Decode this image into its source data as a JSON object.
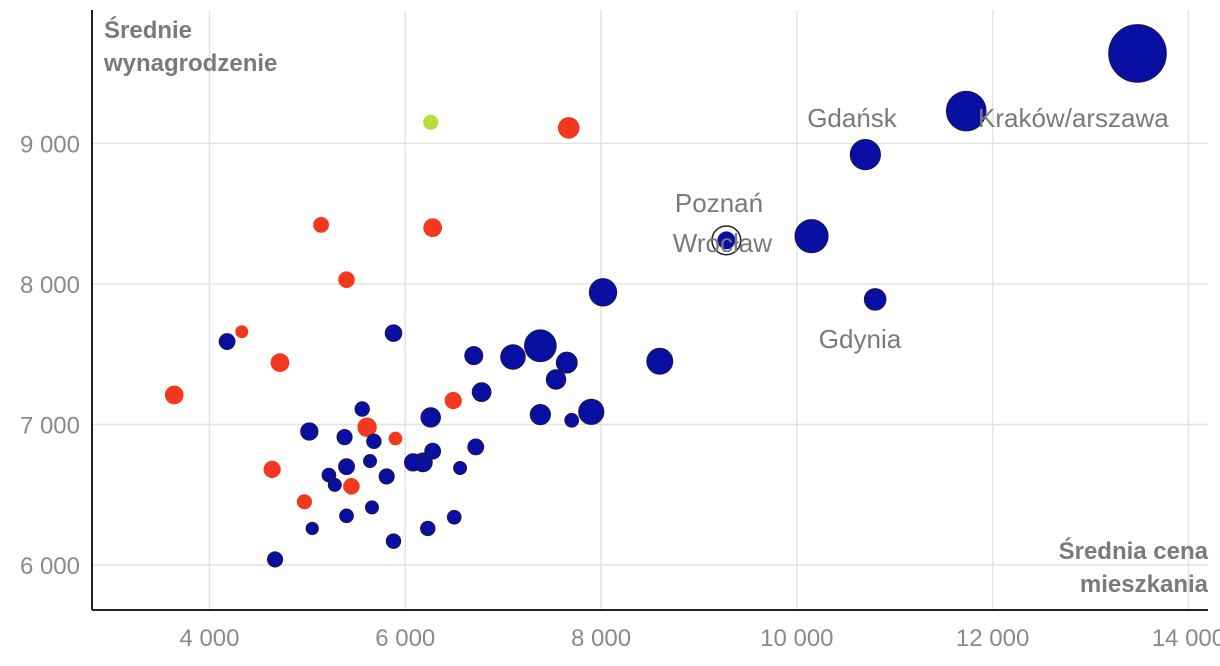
{
  "colors": {
    "city": "#0a0fa3",
    "red": "#f2381f",
    "green": "#b5de3c",
    "highlight_fill": "#ffffff"
  },
  "chart_data": {
    "type": "scatter",
    "title": "",
    "xlabel": [
      "Średnia cena",
      "mieszkania"
    ],
    "ylabel": [
      "Średnie",
      "wynagrodzenie"
    ],
    "xlim": [
      2800,
      14200
    ],
    "ylim": [
      5680,
      10020
    ],
    "xticks": [
      4000,
      6000,
      8000,
      10000,
      12000,
      14000
    ],
    "yticks": [
      6000,
      7000,
      8000,
      9000
    ],
    "xtick_labels": [
      "4 000",
      "6 000",
      "8 000",
      "10 000",
      "12 000",
      "14 000"
    ],
    "ytick_labels": [
      "6 000",
      "7 000",
      "8 000",
      "9 000"
    ],
    "grid": true,
    "points": [
      {
        "x": 13480,
        "y": 9640,
        "size": 8,
        "group": "city"
      },
      {
        "x": 11730,
        "y": 9230,
        "size": 5.5,
        "group": "city",
        "label": "Kraków",
        "overlap": "Warszawa"
      },
      {
        "x": 10700,
        "y": 8920,
        "size": 4.2,
        "group": "city",
        "label": "Gdańsk"
      },
      {
        "x": 10150,
        "y": 8340,
        "size": 4.6,
        "group": "city",
        "label": "Wrocław"
      },
      {
        "x": 9280,
        "y": 8310,
        "size": 4.0,
        "group": "highlight",
        "label": "Poznań"
      },
      {
        "x": 10800,
        "y": 7890,
        "size": 3.0,
        "group": "city",
        "label": "Gdynia"
      },
      {
        "x": 8020,
        "y": 7940,
        "size": 3.8,
        "group": "city"
      },
      {
        "x": 8600,
        "y": 7450,
        "size": 3.6,
        "group": "city"
      },
      {
        "x": 7380,
        "y": 7560,
        "size": 4.4,
        "group": "city"
      },
      {
        "x": 7100,
        "y": 7480,
        "size": 3.4,
        "group": "city"
      },
      {
        "x": 7650,
        "y": 7440,
        "size": 2.9,
        "group": "city"
      },
      {
        "x": 7540,
        "y": 7320,
        "size": 2.7,
        "group": "city"
      },
      {
        "x": 6700,
        "y": 7490,
        "size": 2.5,
        "group": "city"
      },
      {
        "x": 6780,
        "y": 7230,
        "size": 2.6,
        "group": "city"
      },
      {
        "x": 7900,
        "y": 7090,
        "size": 3.5,
        "group": "city"
      },
      {
        "x": 7380,
        "y": 7070,
        "size": 2.8,
        "group": "city"
      },
      {
        "x": 7700,
        "y": 7030,
        "size": 1.9,
        "group": "city"
      },
      {
        "x": 6260,
        "y": 7050,
        "size": 2.7,
        "group": "city"
      },
      {
        "x": 5880,
        "y": 7650,
        "size": 2.3,
        "group": "city"
      },
      {
        "x": 4180,
        "y": 7590,
        "size": 2.2,
        "group": "city"
      },
      {
        "x": 5020,
        "y": 6950,
        "size": 2.4,
        "group": "city"
      },
      {
        "x": 5560,
        "y": 7110,
        "size": 2.0,
        "group": "city"
      },
      {
        "x": 5380,
        "y": 6910,
        "size": 2.1,
        "group": "city"
      },
      {
        "x": 5680,
        "y": 6880,
        "size": 2.0,
        "group": "city"
      },
      {
        "x": 5640,
        "y": 6740,
        "size": 1.8,
        "group": "city"
      },
      {
        "x": 5400,
        "y": 6700,
        "size": 2.2,
        "group": "city"
      },
      {
        "x": 5220,
        "y": 6640,
        "size": 1.9,
        "group": "city"
      },
      {
        "x": 5280,
        "y": 6570,
        "size": 1.8,
        "group": "city"
      },
      {
        "x": 5810,
        "y": 6630,
        "size": 2.1,
        "group": "city"
      },
      {
        "x": 6080,
        "y": 6730,
        "size": 2.4,
        "group": "city"
      },
      {
        "x": 6180,
        "y": 6730,
        "size": 2.6,
        "group": "city"
      },
      {
        "x": 6280,
        "y": 6810,
        "size": 2.2,
        "group": "city"
      },
      {
        "x": 6720,
        "y": 6840,
        "size": 2.2,
        "group": "city"
      },
      {
        "x": 6560,
        "y": 6690,
        "size": 1.8,
        "group": "city"
      },
      {
        "x": 5660,
        "y": 6410,
        "size": 1.8,
        "group": "city"
      },
      {
        "x": 5400,
        "y": 6350,
        "size": 1.9,
        "group": "city"
      },
      {
        "x": 5050,
        "y": 6260,
        "size": 1.7,
        "group": "city"
      },
      {
        "x": 6500,
        "y": 6340,
        "size": 1.9,
        "group": "city"
      },
      {
        "x": 6230,
        "y": 6260,
        "size": 2.0,
        "group": "city"
      },
      {
        "x": 5880,
        "y": 6170,
        "size": 2.0,
        "group": "city"
      },
      {
        "x": 4670,
        "y": 6040,
        "size": 2.1,
        "group": "city"
      },
      {
        "x": 7670,
        "y": 9110,
        "size": 3.0,
        "group": "red"
      },
      {
        "x": 6280,
        "y": 8400,
        "size": 2.6,
        "group": "red"
      },
      {
        "x": 5140,
        "y": 8420,
        "size": 2.2,
        "group": "red"
      },
      {
        "x": 5400,
        "y": 8030,
        "size": 2.3,
        "group": "red"
      },
      {
        "x": 4330,
        "y": 7660,
        "size": 1.8,
        "group": "red"
      },
      {
        "x": 4720,
        "y": 7440,
        "size": 2.6,
        "group": "red"
      },
      {
        "x": 3640,
        "y": 7210,
        "size": 2.6,
        "group": "red"
      },
      {
        "x": 6490,
        "y": 7170,
        "size": 2.4,
        "group": "red"
      },
      {
        "x": 5610,
        "y": 6980,
        "size": 2.7,
        "group": "red"
      },
      {
        "x": 5900,
        "y": 6900,
        "size": 1.9,
        "group": "red"
      },
      {
        "x": 4640,
        "y": 6680,
        "size": 2.4,
        "group": "red"
      },
      {
        "x": 5450,
        "y": 6560,
        "size": 2.3,
        "group": "red"
      },
      {
        "x": 4970,
        "y": 6450,
        "size": 2.1,
        "group": "red"
      },
      {
        "x": 6260,
        "y": 9150,
        "size": 2.1,
        "group": "green"
      }
    ],
    "annotations": [
      "Gdańsk",
      "Kraków/arszawa",
      "Poznań",
      "Wrocław",
      "Gdynia"
    ]
  }
}
